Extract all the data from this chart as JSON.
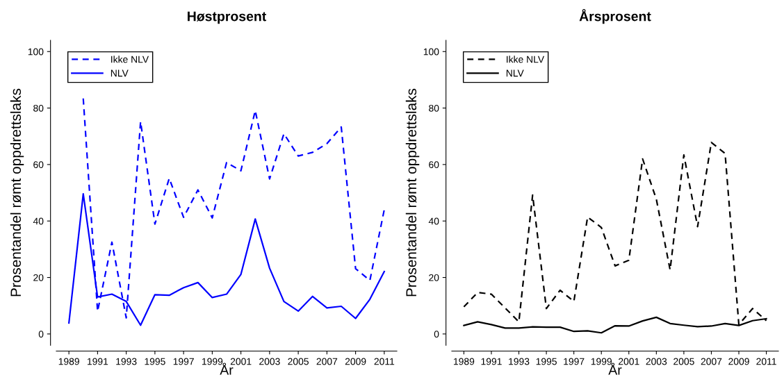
{
  "chart_data": [
    {
      "type": "line",
      "title": "Høstprosent",
      "xlabel": "År",
      "ylabel": "Prosentandel rømt oppdrettslaks",
      "x": [
        1989,
        1990,
        1991,
        1992,
        1993,
        1994,
        1995,
        1996,
        1997,
        1998,
        1999,
        2000,
        2001,
        2002,
        2003,
        2004,
        2005,
        2006,
        2007,
        2008,
        2009,
        2010,
        2011
      ],
      "series": [
        {
          "name": "Ikke NLV",
          "color": "#0000ff",
          "line_style": "dashed",
          "values": [
            null,
            83.4,
            8.0,
            32.5,
            5.7,
            75.2,
            38.9,
            55.1,
            41.3,
            51.0,
            41.1,
            60.7,
            57.8,
            79.1,
            54.9,
            70.9,
            63.0,
            64.3,
            67.4,
            73.3,
            23.1,
            19.0,
            44.0
          ]
        },
        {
          "name": "NLV",
          "color": "#0000ff",
          "line_style": "solid",
          "values": [
            3.9,
            49.6,
            13.1,
            14.1,
            11.5,
            3.1,
            13.9,
            13.7,
            16.4,
            18.2,
            12.9,
            14.1,
            21.1,
            40.7,
            23.3,
            11.5,
            8.1,
            13.3,
            9.2,
            9.8,
            5.5,
            12.3,
            22.1
          ]
        }
      ],
      "xlim": [
        1988.12,
        2011.88
      ],
      "xticks": [
        1989,
        1991,
        1993,
        1995,
        1997,
        1999,
        2001,
        2003,
        2005,
        2007,
        2009,
        2011
      ],
      "ylim": [
        -4,
        104
      ],
      "yticks": [
        0,
        20,
        40,
        60,
        80,
        100
      ],
      "legend": "top left"
    },
    {
      "type": "line",
      "title": "Årsprosent",
      "xlabel": "År",
      "ylabel": "Prosentandel rømt oppdrettslaks",
      "x": [
        1989,
        1990,
        1991,
        1992,
        1993,
        1994,
        1995,
        1996,
        1997,
        1998,
        1999,
        2000,
        2001,
        2002,
        2003,
        2004,
        2005,
        2006,
        2007,
        2008,
        2009,
        2010,
        2011
      ],
      "series": [
        {
          "name": "Ikke NLV",
          "color": "#000000",
          "line_style": "dashed",
          "values": [
            9.6,
            14.7,
            14.1,
            9.2,
            4.3,
            49.2,
            9.0,
            15.5,
            11.5,
            41.4,
            37.7,
            24.1,
            26.1,
            62.0,
            47.7,
            22.7,
            63.4,
            38.0,
            67.8,
            63.9,
            3.3,
            9.0,
            4.7
          ]
        },
        {
          "name": "NLV",
          "color": "#000000",
          "line_style": "solid",
          "values": [
            3.0,
            4.3,
            3.3,
            2.1,
            2.1,
            2.5,
            2.4,
            2.4,
            0.9,
            1.1,
            0.4,
            2.9,
            2.8,
            4.6,
            5.9,
            3.7,
            3.1,
            2.6,
            2.8,
            3.7,
            3.0,
            4.7,
            5.4
          ]
        }
      ],
      "xlim": [
        1988.12,
        2011.88
      ],
      "xticks": [
        1989,
        1991,
        1993,
        1995,
        1997,
        1999,
        2001,
        2003,
        2005,
        2007,
        2009,
        2011
      ],
      "ylim": [
        -4,
        104
      ],
      "yticks": [
        0,
        20,
        40,
        60,
        80,
        100
      ],
      "legend": "top left"
    }
  ]
}
